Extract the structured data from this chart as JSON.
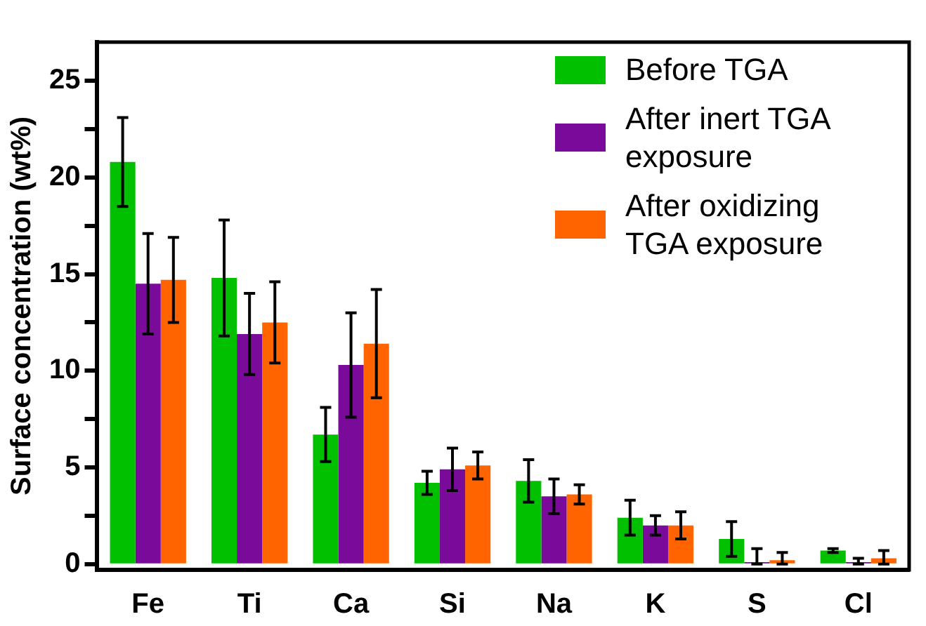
{
  "chart_data": {
    "type": "bar",
    "ylabel": "Surface concentration (wt%)",
    "categories": [
      "Fe",
      "Ti",
      "Ca",
      "Si",
      "Na",
      "K",
      "S",
      "Cl"
    ],
    "series": [
      {
        "name": "Before TGA",
        "color": "#00c000",
        "values": [
          20.8,
          14.8,
          6.7,
          4.2,
          4.3,
          2.4,
          1.3,
          0.7
        ],
        "errors": [
          2.3,
          3.0,
          1.4,
          0.6,
          1.1,
          0.9,
          0.9,
          0.1
        ]
      },
      {
        "name": "After inert TGA exposure",
        "color": "#7a0a9a",
        "values": [
          14.5,
          11.9,
          10.3,
          4.9,
          3.5,
          2.0,
          0.1,
          0.1
        ],
        "errors": [
          2.6,
          2.1,
          2.7,
          1.1,
          0.9,
          0.5,
          [
            0,
            0.8
          ],
          [
            0,
            0.3
          ]
        ]
      },
      {
        "name": "After oxidizing TGA exposure",
        "color": "#ff6400",
        "values": [
          14.7,
          12.5,
          11.4,
          5.1,
          3.6,
          2.0,
          0.2,
          0.3
        ],
        "errors": [
          2.2,
          2.1,
          2.8,
          0.7,
          0.5,
          0.7,
          [
            0,
            0.6
          ],
          [
            0,
            0.7
          ]
        ]
      }
    ],
    "ylim": [
      -0.3,
      27
    ],
    "yticks": [
      0,
      {
        "value": 2.5,
        "label": null
      },
      5,
      {
        "value": 7.5,
        "label": null
      },
      10,
      {
        "value": 12.5,
        "label": null
      },
      15,
      {
        "value": 17.5,
        "label": null
      },
      20,
      {
        "value": 22.5,
        "label": null
      },
      25
    ],
    "grid": false,
    "legend": "top right"
  }
}
